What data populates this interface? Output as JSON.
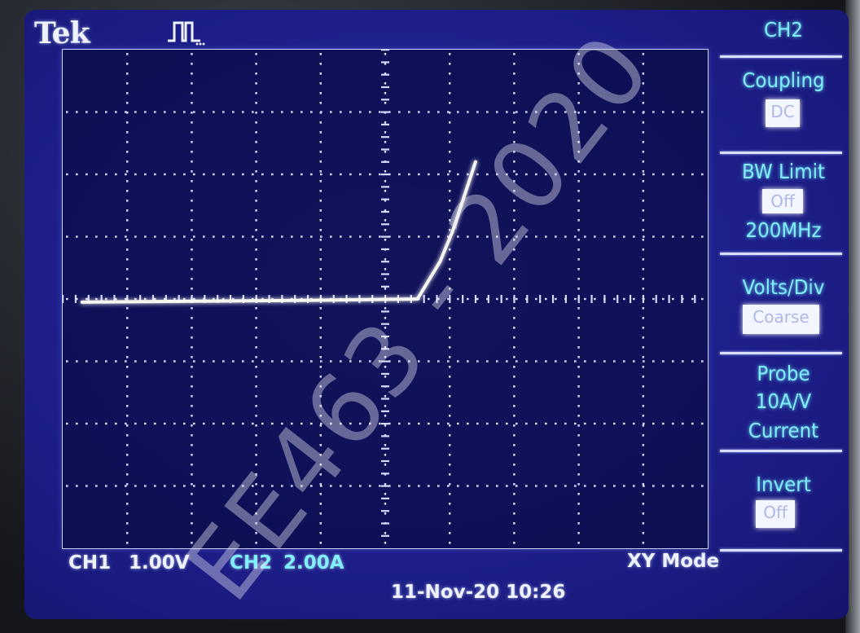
{
  "header": {
    "brand": "Tek",
    "trigger_icon": "pulse-trigger-icon"
  },
  "menu": {
    "title": "CH2",
    "coupling": {
      "label": "Coupling",
      "value": "DC"
    },
    "bw_limit": {
      "label": "BW Limit",
      "value": "Off",
      "freq": "200MHz"
    },
    "volts_div": {
      "label": "Volts/Div",
      "value": "Coarse"
    },
    "probe": {
      "label": "Probe",
      "line2": "10A/V",
      "line3": "Current"
    },
    "invert": {
      "label": "Invert",
      "value": "Off"
    }
  },
  "status": {
    "ch1": "CH1",
    "ch1_scale": "1.00V",
    "ch2": "CH2",
    "ch2_scale": "2.00A",
    "mode": "XY Mode",
    "timestamp": "11-Nov-20 10:26"
  },
  "watermark": "EE463 - 2020",
  "trace": {
    "mode": "XY",
    "x_units": "V",
    "y_units": "A",
    "points_div": [
      [
        -4.7,
        -0.05
      ],
      [
        -1.0,
        -0.02
      ],
      [
        0.5,
        0.0
      ],
      [
        0.85,
        0.6
      ],
      [
        1.05,
        1.1
      ],
      [
        1.4,
        2.2
      ]
    ]
  },
  "colors": {
    "screen": "#1f2190",
    "trace": "#f6f6ee",
    "ch2_menu": "#7ff0ff"
  }
}
